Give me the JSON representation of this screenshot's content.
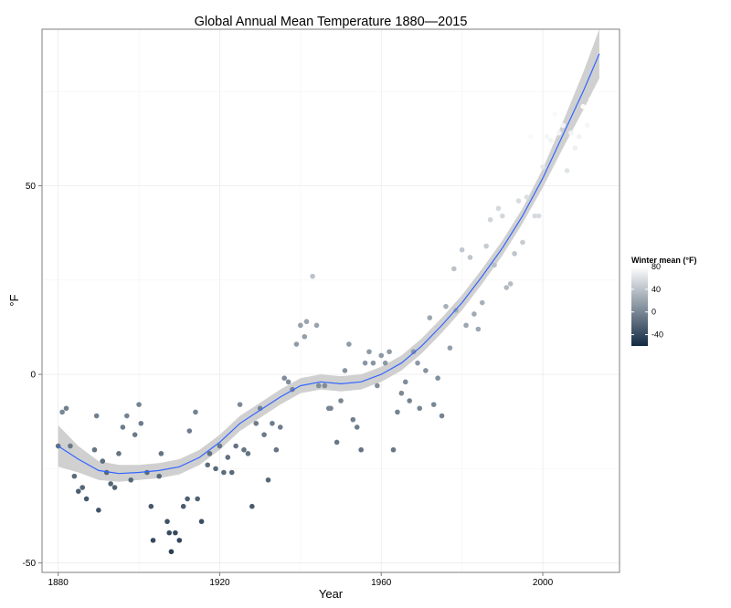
{
  "chart_data": {
    "type": "scatter",
    "title": "Global Annual Mean Temperature 1880—2015",
    "xlabel": "Year",
    "ylabel": "°F",
    "xlim": [
      1876,
      2019
    ],
    "ylim": [
      -52.5,
      91.5
    ],
    "x_ticks": [
      "1880",
      "1920",
      "1960",
      "2000"
    ],
    "y_ticks": [
      "-50",
      "0",
      "50"
    ],
    "grid": true,
    "legend": {
      "title": "Winter mean (°F)",
      "placement": "right",
      "labels": [
        "80",
        "40",
        "0",
        "-40"
      ],
      "range": [
        -60,
        80
      ],
      "color_low": "#132B43",
      "color_high": "#FFFFFF"
    },
    "colors": {
      "smooth_line": "#3366FF",
      "confidence_band": "#C8C8C8",
      "panel_border": "#7F7F7F"
    },
    "points": [
      {
        "x": 1880,
        "y": -19,
        "c": -14
      },
      {
        "x": 1881,
        "y": -10,
        "c": 0
      },
      {
        "x": 1882,
        "y": -9,
        "c": -4
      },
      {
        "x": 1883,
        "y": -19,
        "c": -10
      },
      {
        "x": 1884,
        "y": -27,
        "c": -18
      },
      {
        "x": 1885,
        "y": -31,
        "c": -26
      },
      {
        "x": 1886,
        "y": -30,
        "c": -22
      },
      {
        "x": 1887,
        "y": -33,
        "c": -30
      },
      {
        "x": 1889,
        "y": -20,
        "c": -12
      },
      {
        "x": 1889.5,
        "y": -11,
        "c": -4
      },
      {
        "x": 1890,
        "y": -36,
        "c": -32
      },
      {
        "x": 1891,
        "y": -23,
        "c": -16
      },
      {
        "x": 1892,
        "y": -26,
        "c": -20
      },
      {
        "x": 1893,
        "y": -29,
        "c": -22
      },
      {
        "x": 1894,
        "y": -30,
        "c": -24
      },
      {
        "x": 1895,
        "y": -21,
        "c": -12
      },
      {
        "x": 1896,
        "y": -14,
        "c": -6
      },
      {
        "x": 1897,
        "y": -11,
        "c": -2
      },
      {
        "x": 1898,
        "y": -28,
        "c": -20
      },
      {
        "x": 1899,
        "y": -16,
        "c": -8
      },
      {
        "x": 1900,
        "y": -8,
        "c": -2
      },
      {
        "x": 1900.5,
        "y": -13,
        "c": -6
      },
      {
        "x": 1902,
        "y": -26,
        "c": -18
      },
      {
        "x": 1903,
        "y": -35,
        "c": -30
      },
      {
        "x": 1903.5,
        "y": -44,
        "c": -40
      },
      {
        "x": 1905,
        "y": -27,
        "c": -20
      },
      {
        "x": 1905.5,
        "y": -21,
        "c": -12
      },
      {
        "x": 1907,
        "y": -39,
        "c": -34
      },
      {
        "x": 1907.5,
        "y": -42,
        "c": -38
      },
      {
        "x": 1908,
        "y": -47,
        "c": -46
      },
      {
        "x": 1909,
        "y": -42,
        "c": -40
      },
      {
        "x": 1910,
        "y": -44,
        "c": -42
      },
      {
        "x": 1911,
        "y": -35,
        "c": -28
      },
      {
        "x": 1912,
        "y": -33,
        "c": -26
      },
      {
        "x": 1912.5,
        "y": -15,
        "c": -6
      },
      {
        "x": 1914,
        "y": -10,
        "c": -2
      },
      {
        "x": 1914.5,
        "y": -33,
        "c": -24
      },
      {
        "x": 1915.5,
        "y": -39,
        "c": -36
      },
      {
        "x": 1917,
        "y": -24,
        "c": -16
      },
      {
        "x": 1917.5,
        "y": -21,
        "c": -14
      },
      {
        "x": 1919,
        "y": -25,
        "c": -18
      },
      {
        "x": 1920,
        "y": -19,
        "c": -10
      },
      {
        "x": 1921,
        "y": -26,
        "c": -18
      },
      {
        "x": 1922,
        "y": -22,
        "c": -14
      },
      {
        "x": 1923,
        "y": -26,
        "c": -18
      },
      {
        "x": 1924,
        "y": -19,
        "c": -12
      },
      {
        "x": 1925,
        "y": -8,
        "c": 2
      },
      {
        "x": 1926,
        "y": -20,
        "c": -12
      },
      {
        "x": 1927,
        "y": -21,
        "c": -12
      },
      {
        "x": 1928,
        "y": -35,
        "c": -28
      },
      {
        "x": 1929,
        "y": -13,
        "c": -6
      },
      {
        "x": 1930,
        "y": -9,
        "c": -2
      },
      {
        "x": 1931,
        "y": -16,
        "c": -8
      },
      {
        "x": 1932,
        "y": -28,
        "c": -20
      },
      {
        "x": 1933,
        "y": -13,
        "c": -6
      },
      {
        "x": 1934,
        "y": -20,
        "c": -12
      },
      {
        "x": 1935,
        "y": -14,
        "c": -6
      },
      {
        "x": 1936,
        "y": -1,
        "c": 4
      },
      {
        "x": 1937,
        "y": -2,
        "c": 6
      },
      {
        "x": 1938,
        "y": -4,
        "c": 2
      },
      {
        "x": 1939,
        "y": 8,
        "c": 14
      },
      {
        "x": 1940,
        "y": 13,
        "c": 18
      },
      {
        "x": 1941,
        "y": 10,
        "c": 16
      },
      {
        "x": 1941.5,
        "y": 14,
        "c": 20
      },
      {
        "x": 1943,
        "y": 26,
        "c": 40
      },
      {
        "x": 1944,
        "y": 13,
        "c": 20
      },
      {
        "x": 1944.5,
        "y": -3,
        "c": 6
      },
      {
        "x": 1946,
        "y": -3,
        "c": 4
      },
      {
        "x": 1947,
        "y": -9,
        "c": -2
      },
      {
        "x": 1947.5,
        "y": -9,
        "c": 0
      },
      {
        "x": 1949,
        "y": -18,
        "c": -10
      },
      {
        "x": 1950,
        "y": -7,
        "c": 0
      },
      {
        "x": 1951,
        "y": 1,
        "c": 8
      },
      {
        "x": 1952,
        "y": 8,
        "c": 14
      },
      {
        "x": 1953,
        "y": -12,
        "c": -4
      },
      {
        "x": 1954,
        "y": -14,
        "c": -6
      },
      {
        "x": 1955,
        "y": -20,
        "c": -12
      },
      {
        "x": 1956,
        "y": 3,
        "c": 10
      },
      {
        "x": 1957,
        "y": 6,
        "c": 14
      },
      {
        "x": 1958,
        "y": 3,
        "c": 10
      },
      {
        "x": 1959,
        "y": -3,
        "c": 6
      },
      {
        "x": 1960,
        "y": 5,
        "c": 12
      },
      {
        "x": 1961,
        "y": 3,
        "c": 12
      },
      {
        "x": 1962,
        "y": 6,
        "c": 14
      },
      {
        "x": 1963,
        "y": -20,
        "c": -10
      },
      {
        "x": 1964,
        "y": -10,
        "c": -2
      },
      {
        "x": 1965,
        "y": -5,
        "c": 2
      },
      {
        "x": 1966,
        "y": -2,
        "c": 4
      },
      {
        "x": 1967,
        "y": -7,
        "c": -2
      },
      {
        "x": 1968,
        "y": 6,
        "c": 12
      },
      {
        "x": 1969,
        "y": 3,
        "c": 12
      },
      {
        "x": 1969.5,
        "y": -9,
        "c": 0
      },
      {
        "x": 1971,
        "y": 1,
        "c": 8
      },
      {
        "x": 1972,
        "y": 15,
        "c": 22
      },
      {
        "x": 1973,
        "y": -8,
        "c": 0
      },
      {
        "x": 1974,
        "y": -1,
        "c": 6
      },
      {
        "x": 1975,
        "y": -11,
        "c": -2
      },
      {
        "x": 1976,
        "y": 18,
        "c": 28
      },
      {
        "x": 1977,
        "y": 7,
        "c": 16
      },
      {
        "x": 1978,
        "y": 28,
        "c": 40
      },
      {
        "x": 1978.5,
        "y": 17,
        "c": 26
      },
      {
        "x": 1980,
        "y": 33,
        "c": 44
      },
      {
        "x": 1981,
        "y": 13,
        "c": 22
      },
      {
        "x": 1982,
        "y": 31,
        "c": 42
      },
      {
        "x": 1983,
        "y": 16,
        "c": 24
      },
      {
        "x": 1984,
        "y": 12,
        "c": 22
      },
      {
        "x": 1985,
        "y": 19,
        "c": 28
      },
      {
        "x": 1986,
        "y": 34,
        "c": 46
      },
      {
        "x": 1987,
        "y": 41,
        "c": 52
      },
      {
        "x": 1988,
        "y": 29,
        "c": 38
      },
      {
        "x": 1989,
        "y": 44,
        "c": 54
      },
      {
        "x": 1990,
        "y": 42,
        "c": 54
      },
      {
        "x": 1991,
        "y": 23,
        "c": 34
      },
      {
        "x": 1992,
        "y": 24,
        "c": 36
      },
      {
        "x": 1993,
        "y": 32,
        "c": 42
      },
      {
        "x": 1994,
        "y": 46,
        "c": 56
      },
      {
        "x": 1995,
        "y": 35,
        "c": 46
      },
      {
        "x": 1996,
        "y": 47,
        "c": 58
      },
      {
        "x": 1997,
        "y": 63,
        "c": 76
      },
      {
        "x": 1998,
        "y": 42,
        "c": 56
      },
      {
        "x": 1999,
        "y": 42,
        "c": 56
      },
      {
        "x": 2000,
        "y": 55,
        "c": 64
      },
      {
        "x": 2001,
        "y": 63,
        "c": 74
      },
      {
        "x": 2002,
        "y": 62,
        "c": 72
      },
      {
        "x": 2003,
        "y": 69,
        "c": 76
      },
      {
        "x": 2004,
        "y": 64,
        "c": 72
      },
      {
        "x": 2005,
        "y": 66,
        "c": 72
      },
      {
        "x": 2006,
        "y": 54,
        "c": 62
      },
      {
        "x": 2007,
        "y": 64,
        "c": 72
      },
      {
        "x": 2008,
        "y": 60,
        "c": 70
      },
      {
        "x": 2009,
        "y": 63,
        "c": 72
      },
      {
        "x": 2010,
        "y": 71,
        "c": 78
      },
      {
        "x": 2011,
        "y": 66,
        "c": 74
      },
      {
        "x": 2012,
        "y": 73,
        "c": 80
      },
      {
        "x": 2013,
        "y": 75,
        "c": 82
      }
    ],
    "smooth": [
      {
        "x": 1880,
        "y": -19,
        "lo": -24.5,
        "hi": -13.5
      },
      {
        "x": 1885,
        "y": -22.5,
        "lo": -26,
        "hi": -19
      },
      {
        "x": 1890,
        "y": -25.5,
        "lo": -28,
        "hi": -23
      },
      {
        "x": 1895,
        "y": -26.3,
        "lo": -28.5,
        "hi": -24
      },
      {
        "x": 1900,
        "y": -26,
        "lo": -28,
        "hi": -24
      },
      {
        "x": 1905,
        "y": -25.5,
        "lo": -27.5,
        "hi": -23.5
      },
      {
        "x": 1910,
        "y": -24.5,
        "lo": -26.5,
        "hi": -22.5
      },
      {
        "x": 1915,
        "y": -22,
        "lo": -24,
        "hi": -20
      },
      {
        "x": 1920,
        "y": -18,
        "lo": -20,
        "hi": -16
      },
      {
        "x": 1925,
        "y": -13,
        "lo": -15,
        "hi": -11
      },
      {
        "x": 1930,
        "y": -9.5,
        "lo": -11.5,
        "hi": -7.5
      },
      {
        "x": 1935,
        "y": -6,
        "lo": -8,
        "hi": -4
      },
      {
        "x": 1940,
        "y": -3,
        "lo": -5,
        "hi": -1
      },
      {
        "x": 1945,
        "y": -2,
        "lo": -4,
        "hi": 0
      },
      {
        "x": 1950,
        "y": -2.5,
        "lo": -4.5,
        "hi": -0.5
      },
      {
        "x": 1955,
        "y": -2,
        "lo": -4,
        "hi": 0
      },
      {
        "x": 1960,
        "y": 0,
        "lo": -2,
        "hi": 2
      },
      {
        "x": 1965,
        "y": 3,
        "lo": 1,
        "hi": 5
      },
      {
        "x": 1970,
        "y": 7.5,
        "lo": 5.5,
        "hi": 9.5
      },
      {
        "x": 1975,
        "y": 13,
        "lo": 11,
        "hi": 15
      },
      {
        "x": 1980,
        "y": 19,
        "lo": 17,
        "hi": 21
      },
      {
        "x": 1985,
        "y": 26,
        "lo": 24,
        "hi": 28
      },
      {
        "x": 1990,
        "y": 33.5,
        "lo": 31.5,
        "hi": 35.5
      },
      {
        "x": 1995,
        "y": 42,
        "lo": 40,
        "hi": 44
      },
      {
        "x": 2000,
        "y": 52,
        "lo": 49.5,
        "hi": 54.5
      },
      {
        "x": 2005,
        "y": 63.5,
        "lo": 60,
        "hi": 67
      },
      {
        "x": 2010,
        "y": 75,
        "lo": 70,
        "hi": 80
      },
      {
        "x": 2014,
        "y": 85,
        "lo": 78.5,
        "hi": 91.5
      }
    ]
  }
}
